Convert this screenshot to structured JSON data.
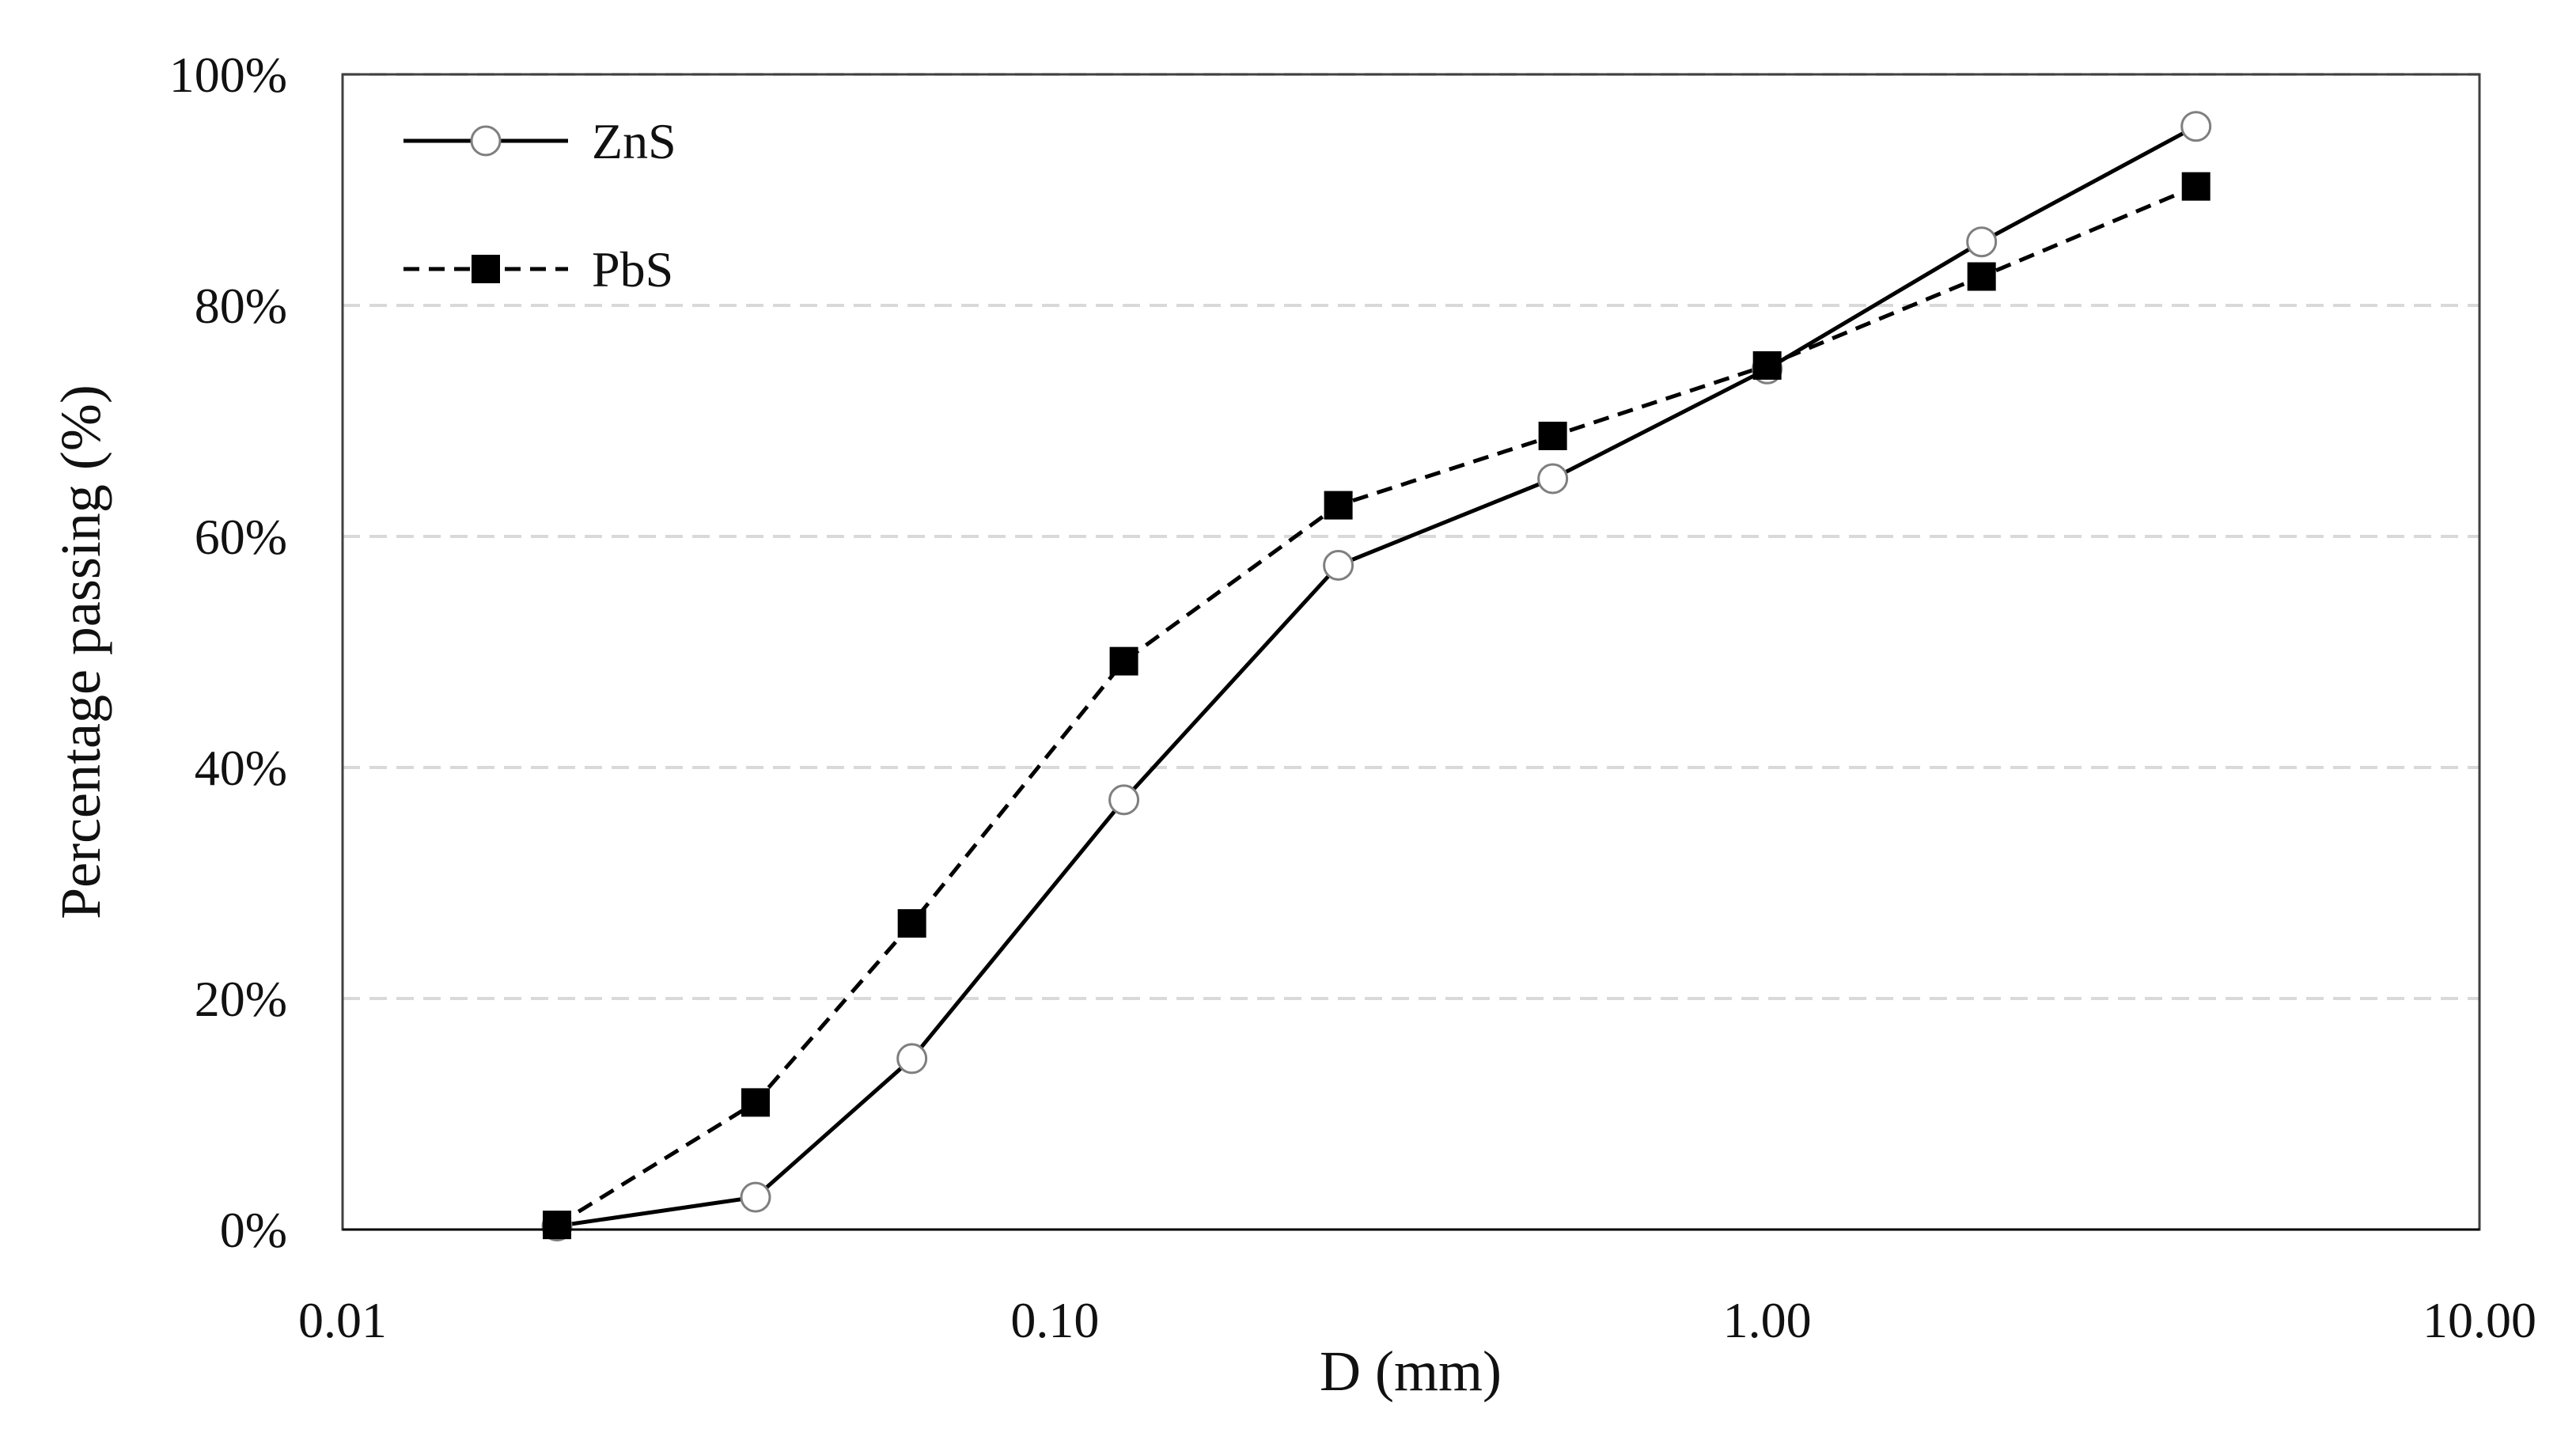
{
  "chart_data": {
    "type": "line",
    "title": "",
    "xlabel": "D (mm)",
    "ylabel": "Percentage passing (%)",
    "x_scale": "log",
    "xlim": [
      0.01,
      10
    ],
    "ylim": [
      0,
      100
    ],
    "x_tick_values": [
      0.01,
      0.1,
      1,
      10
    ],
    "x_tick_labels": [
      "0.01",
      "0.10",
      "1.00",
      "10.00"
    ],
    "y_tick_values": [
      0,
      20,
      40,
      60,
      80,
      100
    ],
    "y_tick_labels": [
      "0%",
      "20%",
      "40%",
      "60%",
      "80%",
      "100%"
    ],
    "grid": "horizontal-dashed",
    "legend_position": "top-left",
    "series": [
      {
        "name": "ZnS",
        "line_style": "solid",
        "marker": "open-circle",
        "x": [
          0.02,
          0.038,
          0.063,
          0.125,
          0.25,
          0.5,
          1.0,
          2.0,
          4.0
        ],
        "values": [
          0.3,
          2.8,
          14.8,
          37.2,
          57.5,
          65.0,
          74.5,
          85.5,
          95.5
        ]
      },
      {
        "name": "PbS",
        "line_style": "dashed",
        "marker": "filled-square",
        "x": [
          0.02,
          0.038,
          0.063,
          0.125,
          0.25,
          0.5,
          1.0,
          2.0,
          4.0
        ],
        "values": [
          0.4,
          11.0,
          26.5,
          49.2,
          62.7,
          68.7,
          74.8,
          82.5,
          90.3
        ]
      }
    ]
  },
  "colors": {
    "line": "#000000",
    "grid": "#d9d9d9",
    "axis": "#404040"
  }
}
